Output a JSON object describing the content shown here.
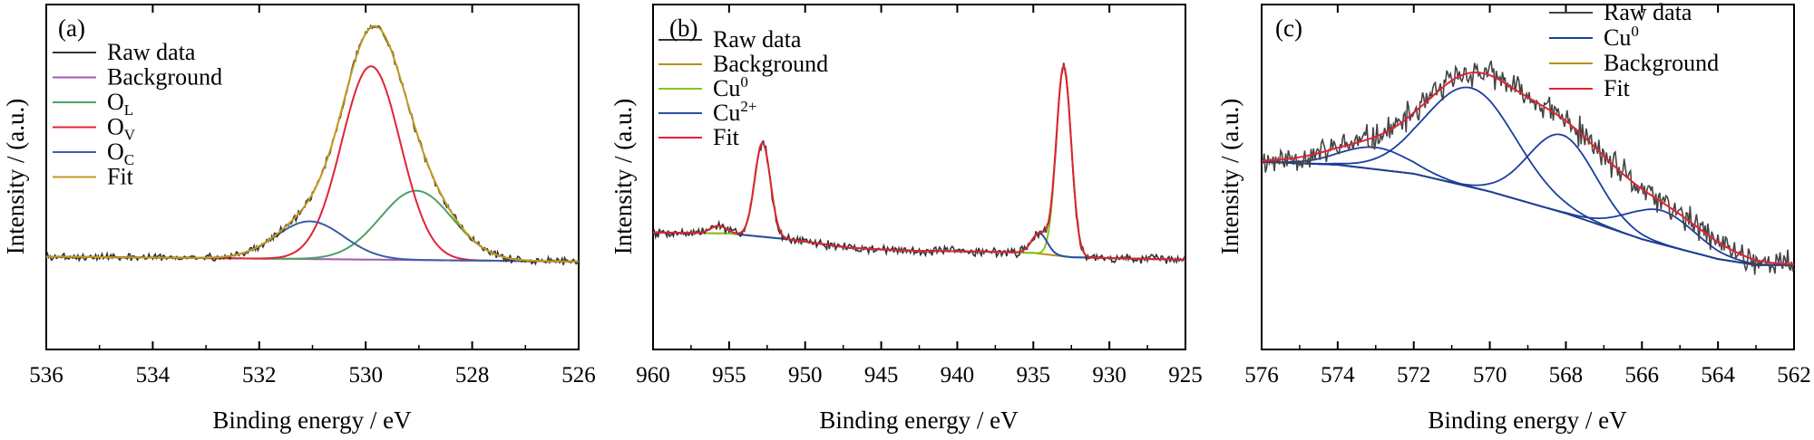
{
  "chart_data": [
    {
      "type": "line",
      "panel_label": "(a)",
      "xlabel": "Binding energy / eV",
      "ylabel": "Intensity / (a.u.)",
      "xlim": [
        536,
        526
      ],
      "x_reversed": true,
      "ylim": [
        0,
        1
      ],
      "yticks_shown": false,
      "xticks": [
        "536",
        "534",
        "532",
        "530",
        "528",
        "526"
      ],
      "grid": false,
      "legend_position": "top-left",
      "legend": [
        {
          "text": "Raw data",
          "sub": "",
          "sup": ""
        },
        {
          "text": "Background",
          "sub": "",
          "sup": ""
        },
        {
          "text": "O",
          "sub": "L",
          "sup": ""
        },
        {
          "text": "O",
          "sub": "V",
          "sup": ""
        },
        {
          "text": "O",
          "sub": "C",
          "sup": ""
        },
        {
          "text": "Fit",
          "sub": "",
          "sup": ""
        }
      ],
      "series": [
        {
          "key": "raw",
          "color": "#333333",
          "kind": "raw",
          "noise": 0.006,
          "seed": 3
        },
        {
          "key": "background",
          "color": "#a05ab4",
          "kind": "linear",
          "from": [
            536,
            0.02
          ],
          "to": [
            526,
            0.0
          ]
        },
        {
          "key": "O_L",
          "color": "#4ca164",
          "kind": "gauss",
          "center": 529.05,
          "fwhm": 1.6,
          "height": 0.285
        },
        {
          "key": "O_V",
          "color": "#e02435",
          "kind": "gauss",
          "center": 529.9,
          "fwhm": 1.3,
          "height": 0.795
        },
        {
          "key": "O_C",
          "color": "#3a5fa8",
          "kind": "gauss",
          "center": 531.05,
          "fwhm": 1.5,
          "height": 0.155
        },
        {
          "key": "fit",
          "color": "#c39a1c",
          "kind": "sum"
        }
      ],
      "draw_order": [
        "background",
        "O_L",
        "O_V",
        "O_C",
        "raw",
        "fit"
      ]
    },
    {
      "type": "line",
      "panel_label": "(b)",
      "xlabel": "Binding energy / eV",
      "ylabel": "Intensity / (a.u.)",
      "xlim": [
        960,
        925
      ],
      "x_reversed": true,
      "ylim": [
        0,
        1
      ],
      "yticks_shown": false,
      "xticks": [
        "960",
        "955",
        "950",
        "945",
        "940",
        "935",
        "930",
        "925"
      ],
      "grid": false,
      "legend_position": "top-left",
      "legend": [
        {
          "text": "Raw data",
          "sub": "",
          "sup": ""
        },
        {
          "text": "Background",
          "sub": "",
          "sup": ""
        },
        {
          "text": "Cu",
          "sub": "",
          "sup": "0"
        },
        {
          "text": "Cu",
          "sub": "",
          "sup": "2+"
        },
        {
          "text": "Fit",
          "sub": "",
          "sup": ""
        }
      ],
      "series": [
        {
          "key": "raw",
          "color": "#333333",
          "kind": "raw",
          "noise": 0.009,
          "seed": 7
        },
        {
          "key": "background",
          "color": "#b8900e",
          "kind": "poly",
          "points": [
            [
              960,
              0.128
            ],
            [
              955,
              0.123
            ],
            [
              951,
              0.095
            ],
            [
              947,
              0.055
            ],
            [
              943,
              0.042
            ],
            [
              938,
              0.038
            ],
            [
              935,
              0.032
            ],
            [
              932.5,
              0.012
            ],
            [
              925,
              0.0
            ]
          ]
        },
        {
          "key": "Cu0",
          "color": "#84c51c",
          "kind": "gauss",
          "center": 933.0,
          "fwhm": 1.15,
          "height": 0.89,
          "peaks": [
            [
              952.8,
              0.44
            ]
          ]
        },
        {
          "key": "Cu2",
          "color": "#2650a8",
          "kind": "gauss",
          "center": 934.6,
          "fwhm": 1.2,
          "height": 0.095,
          "peaks": [
            [
              955.7,
              0.035
            ]
          ]
        },
        {
          "key": "fit",
          "color": "#e02435",
          "kind": "sum"
        }
      ],
      "draw_order": [
        "background",
        "Cu0",
        "Cu2",
        "raw",
        "fit"
      ]
    },
    {
      "type": "line",
      "panel_label": "(c)",
      "xlabel": "Binding energy / eV",
      "ylabel": "Intensity / (a.u.)",
      "xlim": [
        576,
        562
      ],
      "x_reversed": true,
      "ylim": [
        0,
        1
      ],
      "yticks_shown": false,
      "xticks": [
        "576",
        "574",
        "572",
        "570",
        "568",
        "566",
        "564",
        "562"
      ],
      "grid": false,
      "legend_position": "top-right",
      "legend": [
        {
          "text": "Raw data",
          "sub": "",
          "sup": ""
        },
        {
          "text": "Cu",
          "sub": "",
          "sup": "0"
        },
        {
          "text": "Background",
          "sub": "",
          "sup": ""
        },
        {
          "text": "Fit",
          "sub": "",
          "sup": ""
        }
      ],
      "series": [
        {
          "key": "raw",
          "color": "#444444",
          "kind": "raw",
          "noise": 0.03,
          "seed": 11
        },
        {
          "key": "background",
          "color": "#b8900e",
          "kind": "poly",
          "points": [
            [
              576,
              0.52
            ],
            [
              574,
              0.505
            ],
            [
              572,
              0.46
            ],
            [
              570,
              0.37
            ],
            [
              568,
              0.26
            ],
            [
              566,
              0.13
            ],
            [
              564,
              0.03
            ],
            [
              563,
              0.0
            ]
          ]
        },
        {
          "key": "Cu0",
          "color": "#1a3e9e",
          "kind": "gauss",
          "on_background": true,
          "center": 570.5,
          "fwhm": 2.8,
          "height": 0.5,
          "peaks": [
            [
              573.0,
              0.11
            ],
            [
              568.1,
              0.39
            ],
            [
              565.5,
              0.17
            ]
          ]
        },
        {
          "key": "fit",
          "color": "#e02435",
          "kind": "sum"
        }
      ],
      "draw_order": [
        "background",
        "Cu0",
        "raw",
        "fit"
      ]
    }
  ]
}
